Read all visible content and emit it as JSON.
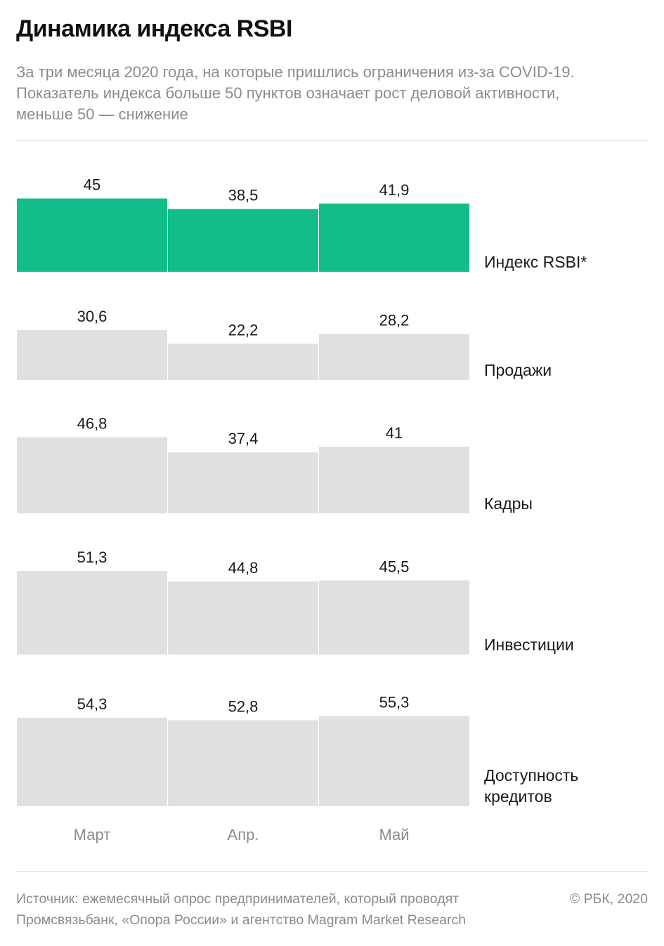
{
  "header": {
    "title": "Динамика индекса RSBI",
    "subtitle": "За три месяца 2020 года, на которые пришлись ограничения из-за COVID-19. Показатель индекса больше 50 пунктов означает рост деловой активности, меньше 50 — снижение"
  },
  "chart_data": {
    "type": "bar",
    "categories": [
      "Март",
      "Апр.",
      "Май"
    ],
    "series": [
      {
        "name": "Индекс RSBI*",
        "values": [
          45,
          38.5,
          41.9
        ],
        "labels": [
          "45",
          "38,5",
          "41,9"
        ],
        "color": "#13bd8a"
      },
      {
        "name": "Продажи",
        "values": [
          30.6,
          22.2,
          28.2
        ],
        "labels": [
          "30,6",
          "22,2",
          "28,2"
        ],
        "color": "#e0e0e0"
      },
      {
        "name": "Кадры",
        "values": [
          46.8,
          37.4,
          41
        ],
        "labels": [
          "46,8",
          "37,4",
          "41"
        ],
        "color": "#e0e0e0"
      },
      {
        "name": "Инвестиции",
        "values": [
          51.3,
          44.8,
          45.5
        ],
        "labels": [
          "51,3",
          "44,8",
          "45,5"
        ],
        "color": "#e0e0e0"
      },
      {
        "name": "Доступность кредитов",
        "values": [
          54.3,
          52.8,
          55.3
        ],
        "labels": [
          "54,3",
          "52,8",
          "55,3"
        ],
        "color": "#e0e0e0"
      }
    ],
    "colors": {
      "highlight": "#13bd8a",
      "default": "#e0e0e0",
      "value_text": "#1a1a1a",
      "category_text": "#8c8c8c",
      "series_text": "#1a1a1a"
    }
  },
  "footer": {
    "source": "Источник: ежемесячный опрос предпринимателей, который проводят Промсвязьбанк, «Опора России» и агентство Magram Market Research",
    "copyright": "© РБК, 2020"
  }
}
